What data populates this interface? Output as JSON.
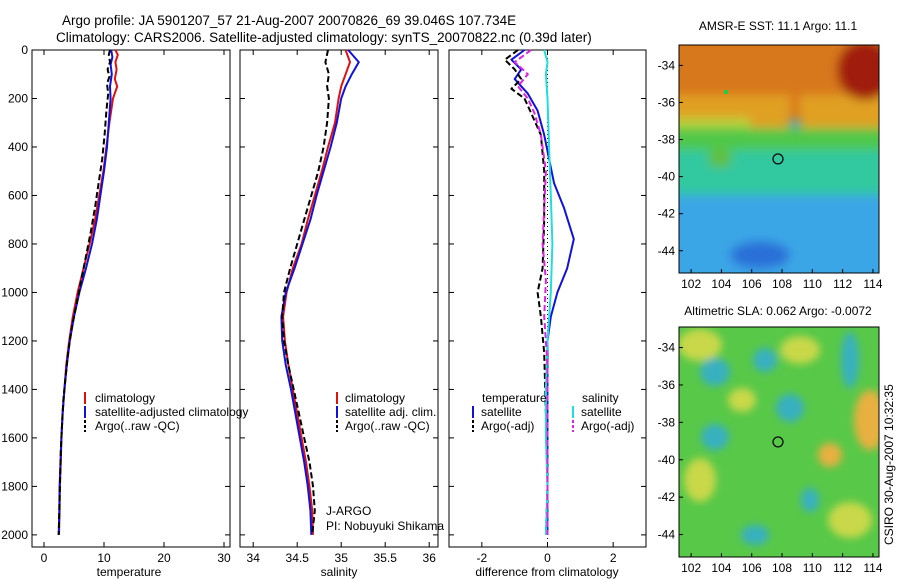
{
  "figure": {
    "title_line1": "Argo profile: JA 5901207_57 21-Aug-2007 20070826_69 39.046S 107.734E",
    "title_line2": "Climatology: CARS2006. Satellite-adjusted climatology: synTS_20070822.nc (0.39d later)",
    "side_stamp": "CSIRO 30-Aug-2007 10:32:35",
    "credit_line1": "J-ARGO",
    "credit_line2": "PI: Nobuyuki Shikama",
    "colors": {
      "climatology": "#dd1111",
      "satellite": "#1111dd",
      "argo": "#000000",
      "satellite_salinity": "#22dddd",
      "argo_adj_salinity": "#dd22dd"
    }
  },
  "chart_data": [
    {
      "id": "temperature",
      "type": "line",
      "xlabel": "temperature",
      "ylabel": "",
      "xlim": [
        -2,
        31
      ],
      "ylim": [
        2050,
        0
      ],
      "xticks": [
        0,
        10,
        20,
        30
      ],
      "yticks": [
        0,
        200,
        400,
        600,
        800,
        1000,
        1200,
        1400,
        1600,
        1800,
        2000
      ],
      "legend": {
        "position": "lower-center",
        "entries": [
          "climatology",
          "satellite-adjusted climatology",
          "Argo(..raw -QC)"
        ]
      },
      "series": [
        {
          "name": "climatology",
          "color": "#dd1111",
          "style": "solid",
          "points": [
            [
              11.9,
              0
            ],
            [
              12.3,
              20
            ],
            [
              11.9,
              50
            ],
            [
              12.1,
              80
            ],
            [
              11.8,
              120
            ],
            [
              12.2,
              150
            ],
            [
              11.5,
              200
            ],
            [
              10.9,
              300
            ],
            [
              10.4,
              400
            ],
            [
              9.9,
              500
            ],
            [
              9.2,
              600
            ],
            [
              8.5,
              700
            ],
            [
              7.6,
              800
            ],
            [
              6.6,
              900
            ],
            [
              5.6,
              1000
            ],
            [
              4.8,
              1100
            ],
            [
              4.2,
              1200
            ],
            [
              3.7,
              1300
            ],
            [
              3.4,
              1400
            ],
            [
              3.1,
              1500
            ],
            [
              2.9,
              1600
            ],
            [
              2.8,
              1700
            ],
            [
              2.65,
              1800
            ],
            [
              2.6,
              1900
            ],
            [
              2.5,
              2000
            ]
          ]
        },
        {
          "name": "satellite-adjusted climatology",
          "color": "#1111dd",
          "style": "solid",
          "points": [
            [
              11.2,
              0
            ],
            [
              11.4,
              30
            ],
            [
              11.1,
              60
            ],
            [
              11.3,
              100
            ],
            [
              11.0,
              150
            ],
            [
              11.1,
              200
            ],
            [
              10.8,
              300
            ],
            [
              10.5,
              400
            ],
            [
              10.0,
              500
            ],
            [
              9.4,
              600
            ],
            [
              8.8,
              700
            ],
            [
              8.0,
              800
            ],
            [
              7.0,
              900
            ],
            [
              5.9,
              1000
            ],
            [
              5.0,
              1100
            ],
            [
              4.3,
              1200
            ],
            [
              3.8,
              1300
            ],
            [
              3.4,
              1400
            ],
            [
              3.1,
              1500
            ],
            [
              2.9,
              1600
            ],
            [
              2.75,
              1700
            ],
            [
              2.6,
              1800
            ],
            [
              2.55,
              1900
            ],
            [
              2.45,
              2000
            ]
          ]
        },
        {
          "name": "Argo(..raw -QC)",
          "color": "#000000",
          "style": "dashed",
          "points": [
            [
              11.0,
              0
            ],
            [
              10.8,
              20
            ],
            [
              11.0,
              50
            ],
            [
              10.6,
              80
            ],
            [
              10.9,
              110
            ],
            [
              10.5,
              140
            ],
            [
              10.7,
              180
            ],
            [
              10.4,
              250
            ],
            [
              10.1,
              350
            ],
            [
              9.7,
              450
            ],
            [
              9.1,
              550
            ],
            [
              8.5,
              650
            ],
            [
              7.8,
              750
            ],
            [
              7.0,
              850
            ],
            [
              6.2,
              950
            ],
            [
              5.4,
              1050
            ],
            [
              4.6,
              1150
            ],
            [
              4.0,
              1250
            ],
            [
              3.6,
              1350
            ],
            [
              3.2,
              1450
            ],
            [
              3.0,
              1550
            ],
            [
              2.8,
              1650
            ],
            [
              2.7,
              1750
            ],
            [
              2.6,
              1850
            ],
            [
              2.5,
              1950
            ],
            [
              2.45,
              2000
            ]
          ]
        }
      ]
    },
    {
      "id": "salinity",
      "type": "line",
      "xlabel": "salinity",
      "ylabel": "",
      "xlim": [
        33.85,
        36.1
      ],
      "ylim": [
        2050,
        0
      ],
      "xticks": [
        34,
        34.5,
        35,
        35.5,
        36
      ],
      "legend": {
        "position": "lower-right",
        "entries": [
          "climatology",
          "satellite adj. clim.",
          "Argo(..raw -QC)"
        ]
      },
      "series": [
        {
          "name": "climatology",
          "color": "#dd1111",
          "style": "solid",
          "points": [
            [
              35.05,
              0
            ],
            [
              35.1,
              50
            ],
            [
              35.05,
              100
            ],
            [
              35.0,
              150
            ],
            [
              34.97,
              200
            ],
            [
              34.93,
              300
            ],
            [
              34.85,
              400
            ],
            [
              34.78,
              500
            ],
            [
              34.7,
              600
            ],
            [
              34.62,
              700
            ],
            [
              34.55,
              800
            ],
            [
              34.45,
              900
            ],
            [
              34.38,
              1000
            ],
            [
              34.34,
              1100
            ],
            [
              34.36,
              1200
            ],
            [
              34.4,
              1300
            ],
            [
              34.45,
              1400
            ],
            [
              34.5,
              1500
            ],
            [
              34.55,
              1600
            ],
            [
              34.6,
              1700
            ],
            [
              34.64,
              1800
            ],
            [
              34.67,
              1900
            ],
            [
              34.68,
              2000
            ]
          ]
        },
        {
          "name": "satellite adj. clim.",
          "color": "#1111dd",
          "style": "solid",
          "points": [
            [
              35.08,
              0
            ],
            [
              35.2,
              50
            ],
            [
              35.12,
              100
            ],
            [
              35.05,
              150
            ],
            [
              35.0,
              200
            ],
            [
              34.95,
              300
            ],
            [
              34.88,
              400
            ],
            [
              34.8,
              500
            ],
            [
              34.72,
              600
            ],
            [
              34.65,
              700
            ],
            [
              34.56,
              800
            ],
            [
              34.47,
              900
            ],
            [
              34.37,
              1000
            ],
            [
              34.32,
              1100
            ],
            [
              34.33,
              1200
            ],
            [
              34.37,
              1300
            ],
            [
              34.43,
              1400
            ],
            [
              34.48,
              1500
            ],
            [
              34.53,
              1600
            ],
            [
              34.58,
              1700
            ],
            [
              34.62,
              1800
            ],
            [
              34.65,
              1900
            ],
            [
              34.66,
              2000
            ]
          ]
        },
        {
          "name": "Argo(..raw -QC)",
          "color": "#000000",
          "style": "dashed",
          "points": [
            [
              34.85,
              0
            ],
            [
              34.82,
              50
            ],
            [
              34.86,
              100
            ],
            [
              34.84,
              150
            ],
            [
              34.86,
              200
            ],
            [
              34.84,
              300
            ],
            [
              34.8,
              400
            ],
            [
              34.74,
              500
            ],
            [
              34.66,
              600
            ],
            [
              34.58,
              700
            ],
            [
              34.5,
              800
            ],
            [
              34.42,
              900
            ],
            [
              34.35,
              1000
            ],
            [
              34.33,
              1100
            ],
            [
              34.35,
              1200
            ],
            [
              34.4,
              1300
            ],
            [
              34.46,
              1400
            ],
            [
              34.52,
              1500
            ],
            [
              34.58,
              1600
            ],
            [
              34.64,
              1700
            ],
            [
              34.68,
              1800
            ],
            [
              34.7,
              1900
            ],
            [
              34.67,
              2000
            ]
          ]
        }
      ]
    },
    {
      "id": "difference",
      "type": "line",
      "xlabel": "difference from climatology",
      "ylabel": "",
      "xlim": [
        -3,
        3
      ],
      "ylim": [
        2050,
        0
      ],
      "xticks": [
        -2,
        0,
        2
      ],
      "reference_line": 0,
      "legend": {
        "position": "lower",
        "columns": [
          {
            "header": "temperature",
            "entries": [
              "satellite",
              "Argo(-adj)"
            ]
          },
          {
            "header": "salinity",
            "entries": [
              "satellite",
              "Argo(-adj)"
            ]
          }
        ]
      },
      "series": [
        {
          "name": "satellite",
          "group": "temperature",
          "color": "#1111dd",
          "style": "solid",
          "points": [
            [
              -0.7,
              0
            ],
            [
              -1.1,
              40
            ],
            [
              -0.8,
              80
            ],
            [
              -1.0,
              120
            ],
            [
              -0.6,
              180
            ],
            [
              -0.3,
              250
            ],
            [
              -0.1,
              350
            ],
            [
              0.05,
              450
            ],
            [
              0.2,
              550
            ],
            [
              0.5,
              650
            ],
            [
              0.8,
              780
            ],
            [
              0.6,
              900
            ],
            [
              0.3,
              1000
            ],
            [
              0.1,
              1100
            ],
            [
              0.0,
              1200
            ],
            [
              0.0,
              1400
            ],
            [
              0.0,
              1600
            ],
            [
              0.0,
              1800
            ],
            [
              0.0,
              2000
            ]
          ]
        },
        {
          "name": "Argo(-adj)",
          "group": "temperature",
          "color": "#000000",
          "style": "dashed",
          "points": [
            [
              -0.9,
              0
            ],
            [
              -1.3,
              40
            ],
            [
              -1.0,
              80
            ],
            [
              -0.8,
              120
            ],
            [
              -1.1,
              160
            ],
            [
              -0.7,
              200
            ],
            [
              -0.5,
              260
            ],
            [
              -0.2,
              350
            ],
            [
              -0.1,
              500
            ],
            [
              -0.1,
              700
            ],
            [
              -0.15,
              900
            ],
            [
              -0.3,
              1000
            ],
            [
              -0.2,
              1100
            ],
            [
              -0.1,
              1250
            ],
            [
              -0.05,
              1500
            ],
            [
              0.0,
              1800
            ],
            [
              -0.05,
              2000
            ]
          ]
        },
        {
          "name": "satellite",
          "group": "salinity",
          "color": "#22dddd",
          "style": "solid",
          "points": [
            [
              -0.1,
              0
            ],
            [
              0.0,
              50
            ],
            [
              -0.05,
              100
            ],
            [
              0.0,
              200
            ],
            [
              0.05,
              400
            ],
            [
              0.1,
              600
            ],
            [
              0.15,
              800
            ],
            [
              0.1,
              1000
            ],
            [
              0.0,
              1200
            ],
            [
              -0.05,
              1400
            ],
            [
              -0.05,
              1600
            ],
            [
              0.0,
              1800
            ],
            [
              -0.05,
              2000
            ]
          ]
        },
        {
          "name": "Argo(-adj)",
          "group": "salinity",
          "color": "#dd22dd",
          "style": "dashed",
          "points": [
            [
              -0.5,
              0
            ],
            [
              -1.0,
              50
            ],
            [
              -0.6,
              100
            ],
            [
              -0.9,
              150
            ],
            [
              -0.6,
              200
            ],
            [
              -0.4,
              260
            ],
            [
              -0.2,
              350
            ],
            [
              -0.05,
              500
            ],
            [
              -0.1,
              650
            ],
            [
              -0.15,
              800
            ],
            [
              -0.05,
              950
            ],
            [
              -0.1,
              1100
            ],
            [
              0.0,
              1300
            ],
            [
              0.0,
              1500
            ],
            [
              0.0,
              1700
            ],
            [
              0.0,
              1900
            ],
            [
              0.0,
              2000
            ]
          ]
        }
      ]
    },
    {
      "id": "sst-map",
      "type": "heatmap",
      "title": "AMSR-E SST: 11.1  Argo: 11.1",
      "xlim": [
        101.2,
        114.4
      ],
      "ylim": [
        -45.2,
        -32.9
      ],
      "xticks": [
        102,
        104,
        106,
        108,
        110,
        112,
        114
      ],
      "yticks": [
        -34,
        -36,
        -38,
        -40,
        -42,
        -44
      ],
      "marker": {
        "lon": 107.734,
        "lat": -39.046
      },
      "colormap": "jet"
    },
    {
      "id": "sla-map",
      "type": "heatmap",
      "title": "Altimetric SLA: 0.062  Argo: -0.0072",
      "xlim": [
        101.2,
        114.4
      ],
      "ylim": [
        -45.2,
        -32.9
      ],
      "xticks": [
        102,
        104,
        106,
        108,
        110,
        112,
        114
      ],
      "yticks": [
        -34,
        -36,
        -38,
        -40,
        -42,
        -44
      ],
      "marker": {
        "lon": 107.734,
        "lat": -39.046
      },
      "colormap": "jet"
    }
  ]
}
